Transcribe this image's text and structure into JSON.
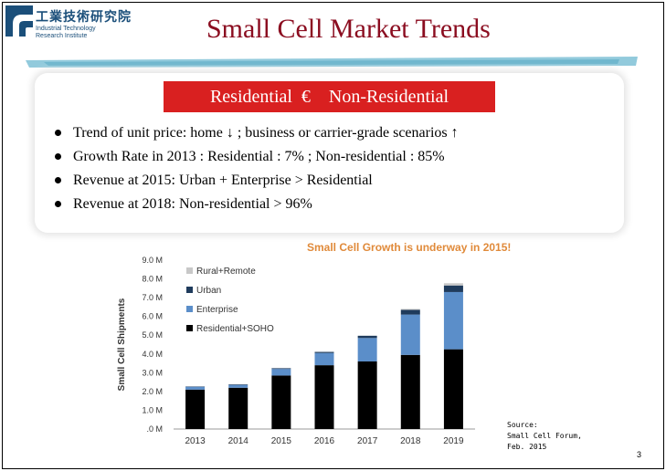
{
  "logo": {
    "name_cn": "工業技術研究院",
    "name_en_line1": "Industrial Technology",
    "name_en_line2": "Research Institute"
  },
  "slide": {
    "title": "Small Cell Market Trends",
    "banner": "Residential  €    Non-Residential",
    "bullets": [
      "Trend of unit price: home ↓ ; business or carrier-grade scenarios ↑",
      "Growth Rate in 2013 : Residential : 7% ; Non-residential : 85%",
      "Revenue at 2015: Urban + Enterprise > Residential",
      "Revenue at 2018: Non-residential > 96%"
    ],
    "source_line1": "Source:",
    "source_line2": "Small Cell Forum,",
    "source_line3": "Feb. 2015",
    "page_number": "3"
  },
  "colors": {
    "title": "#8b0d20",
    "banner_bg": "#d92020",
    "chart_title": "#e08a3a",
    "residential": "#000000",
    "enterprise": "#5b8ec9",
    "urban": "#1f3b5c",
    "rural": "#c8c8c8"
  },
  "chart_data": {
    "type": "bar",
    "stacked": true,
    "title": "Small Cell Growth is underway in 2015!",
    "ylabel": "Small Cell Shipments",
    "xlabel": "",
    "categories": [
      "2013",
      "2014",
      "2015",
      "2016",
      "2017",
      "2018",
      "2019"
    ],
    "ylim": [
      0,
      9
    ],
    "yticks": [
      ".0 M",
      "1.0 M",
      "2.0 M",
      "3.0 M",
      "4.0 M",
      "5.0 M",
      "6.0 M",
      "7.0 M",
      "8.0 M",
      "9.0 M"
    ],
    "legend_position": "top-left",
    "series": [
      {
        "name": "Residential+SOHO",
        "color": "#000000",
        "values": [
          2.1,
          2.2,
          2.85,
          3.4,
          3.6,
          3.95,
          4.25
        ]
      },
      {
        "name": "Enterprise",
        "color": "#5b8ec9",
        "values": [
          0.15,
          0.15,
          0.35,
          0.65,
          1.25,
          2.15,
          3.05
        ]
      },
      {
        "name": "Urban",
        "color": "#1f3b5c",
        "values": [
          0.02,
          0.03,
          0.04,
          0.06,
          0.12,
          0.25,
          0.35
        ]
      },
      {
        "name": "Rural+Remote",
        "color": "#c8c8c8",
        "values": [
          0.0,
          0.0,
          0.0,
          0.0,
          0.0,
          0.05,
          0.12
        ]
      }
    ]
  }
}
